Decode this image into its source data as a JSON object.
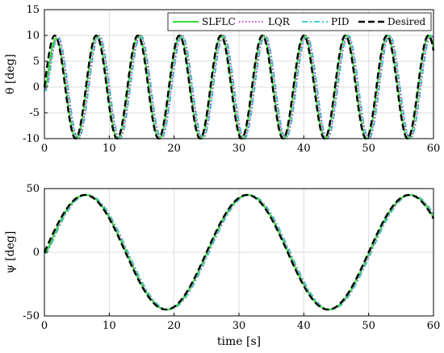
{
  "chart_data": [
    {
      "type": "line",
      "ylabel": "θ [deg]",
      "xlim": [
        0,
        60
      ],
      "ylim": [
        -10,
        15
      ],
      "xticks": [
        0,
        10,
        20,
        30,
        40,
        50,
        60
      ],
      "yticks": [
        -10,
        -5,
        0,
        5,
        10,
        15
      ],
      "grid": true,
      "legend_position": "top-right",
      "desired": {
        "amplitude": 10,
        "period": 6.4,
        "phase_shift": 0
      },
      "series": [
        {
          "name": "SLFLC",
          "color": "#33dd33",
          "dash": "solid",
          "phase_lag": 0.1
        },
        {
          "name": "LQR",
          "color": "#cc33cc",
          "dash": "dotted",
          "phase_lag": 0.35
        },
        {
          "name": "PID",
          "color": "#44cccc",
          "dash": "dashdot",
          "phase_lag": 0.45
        },
        {
          "name": "Desired",
          "color": "#000000",
          "dash": "dashed",
          "phase_lag": 0
        }
      ]
    },
    {
      "type": "line",
      "ylabel": "ψ [deg]",
      "xlabel": "time [s]",
      "xlim": [
        0,
        60
      ],
      "ylim": [
        -50,
        50
      ],
      "xticks": [
        0,
        10,
        20,
        30,
        40,
        50,
        60
      ],
      "yticks": [
        -50,
        0,
        50
      ],
      "grid": true,
      "desired": {
        "amplitude": 45,
        "period": 25,
        "phase_shift": 0
      },
      "series": [
        {
          "name": "SLFLC",
          "color": "#33dd33",
          "dash": "solid",
          "phase_lag": 0.1
        },
        {
          "name": "LQR",
          "color": "#cc33cc",
          "dash": "dotted",
          "phase_lag": 0.25
        },
        {
          "name": "PID",
          "color": "#44cccc",
          "dash": "dashdot",
          "phase_lag": 0.4
        },
        {
          "name": "Desired",
          "color": "#000000",
          "dash": "dashed",
          "phase_lag": 0
        }
      ]
    }
  ]
}
